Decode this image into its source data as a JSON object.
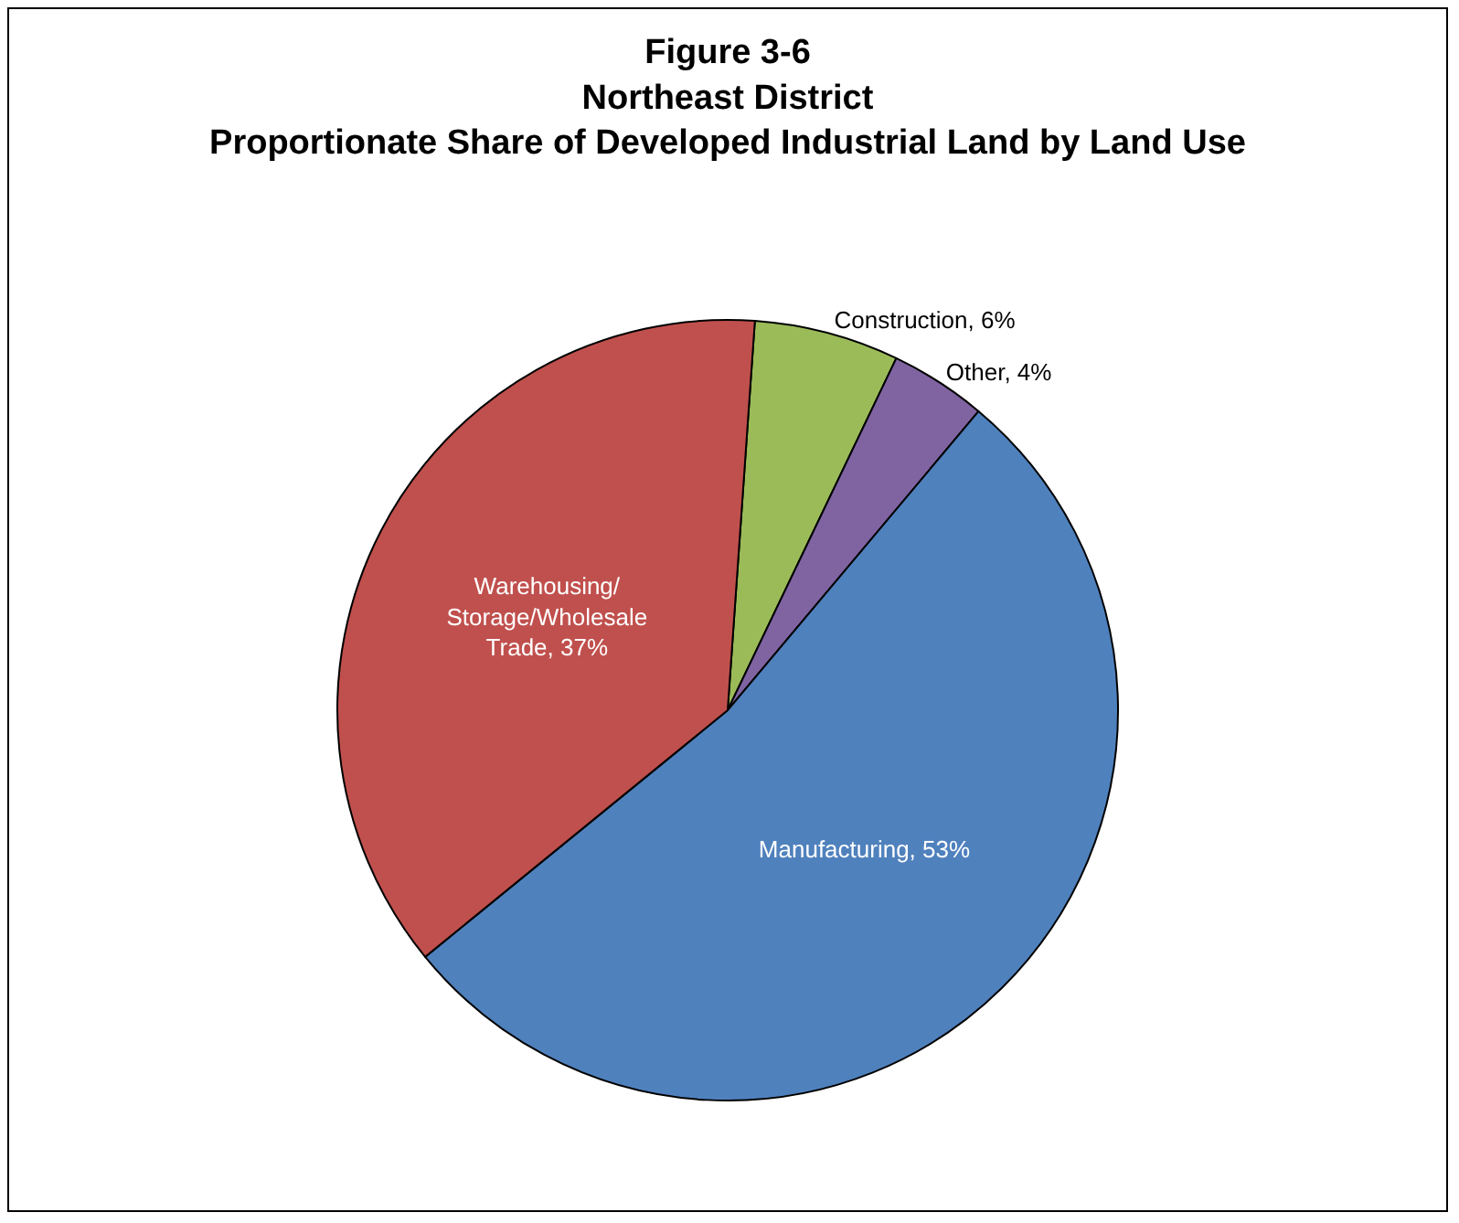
{
  "chart_data": {
    "type": "pie",
    "title": "Figure 3-6\nNortheast District\nProportionate Share of Developed Industrial Land by Land Use",
    "categories": [
      "Construction",
      "Other",
      "Manufacturing",
      "Warehousing/ Storage/Wholesale Trade"
    ],
    "values": [
      6,
      4,
      53,
      37
    ],
    "colors": [
      "#9bbb59",
      "#8064a2",
      "#4f81bd",
      "#c0504d"
    ],
    "value_labels": [
      "6%",
      "4%",
      "53%",
      "37%"
    ],
    "legend": false
  }
}
